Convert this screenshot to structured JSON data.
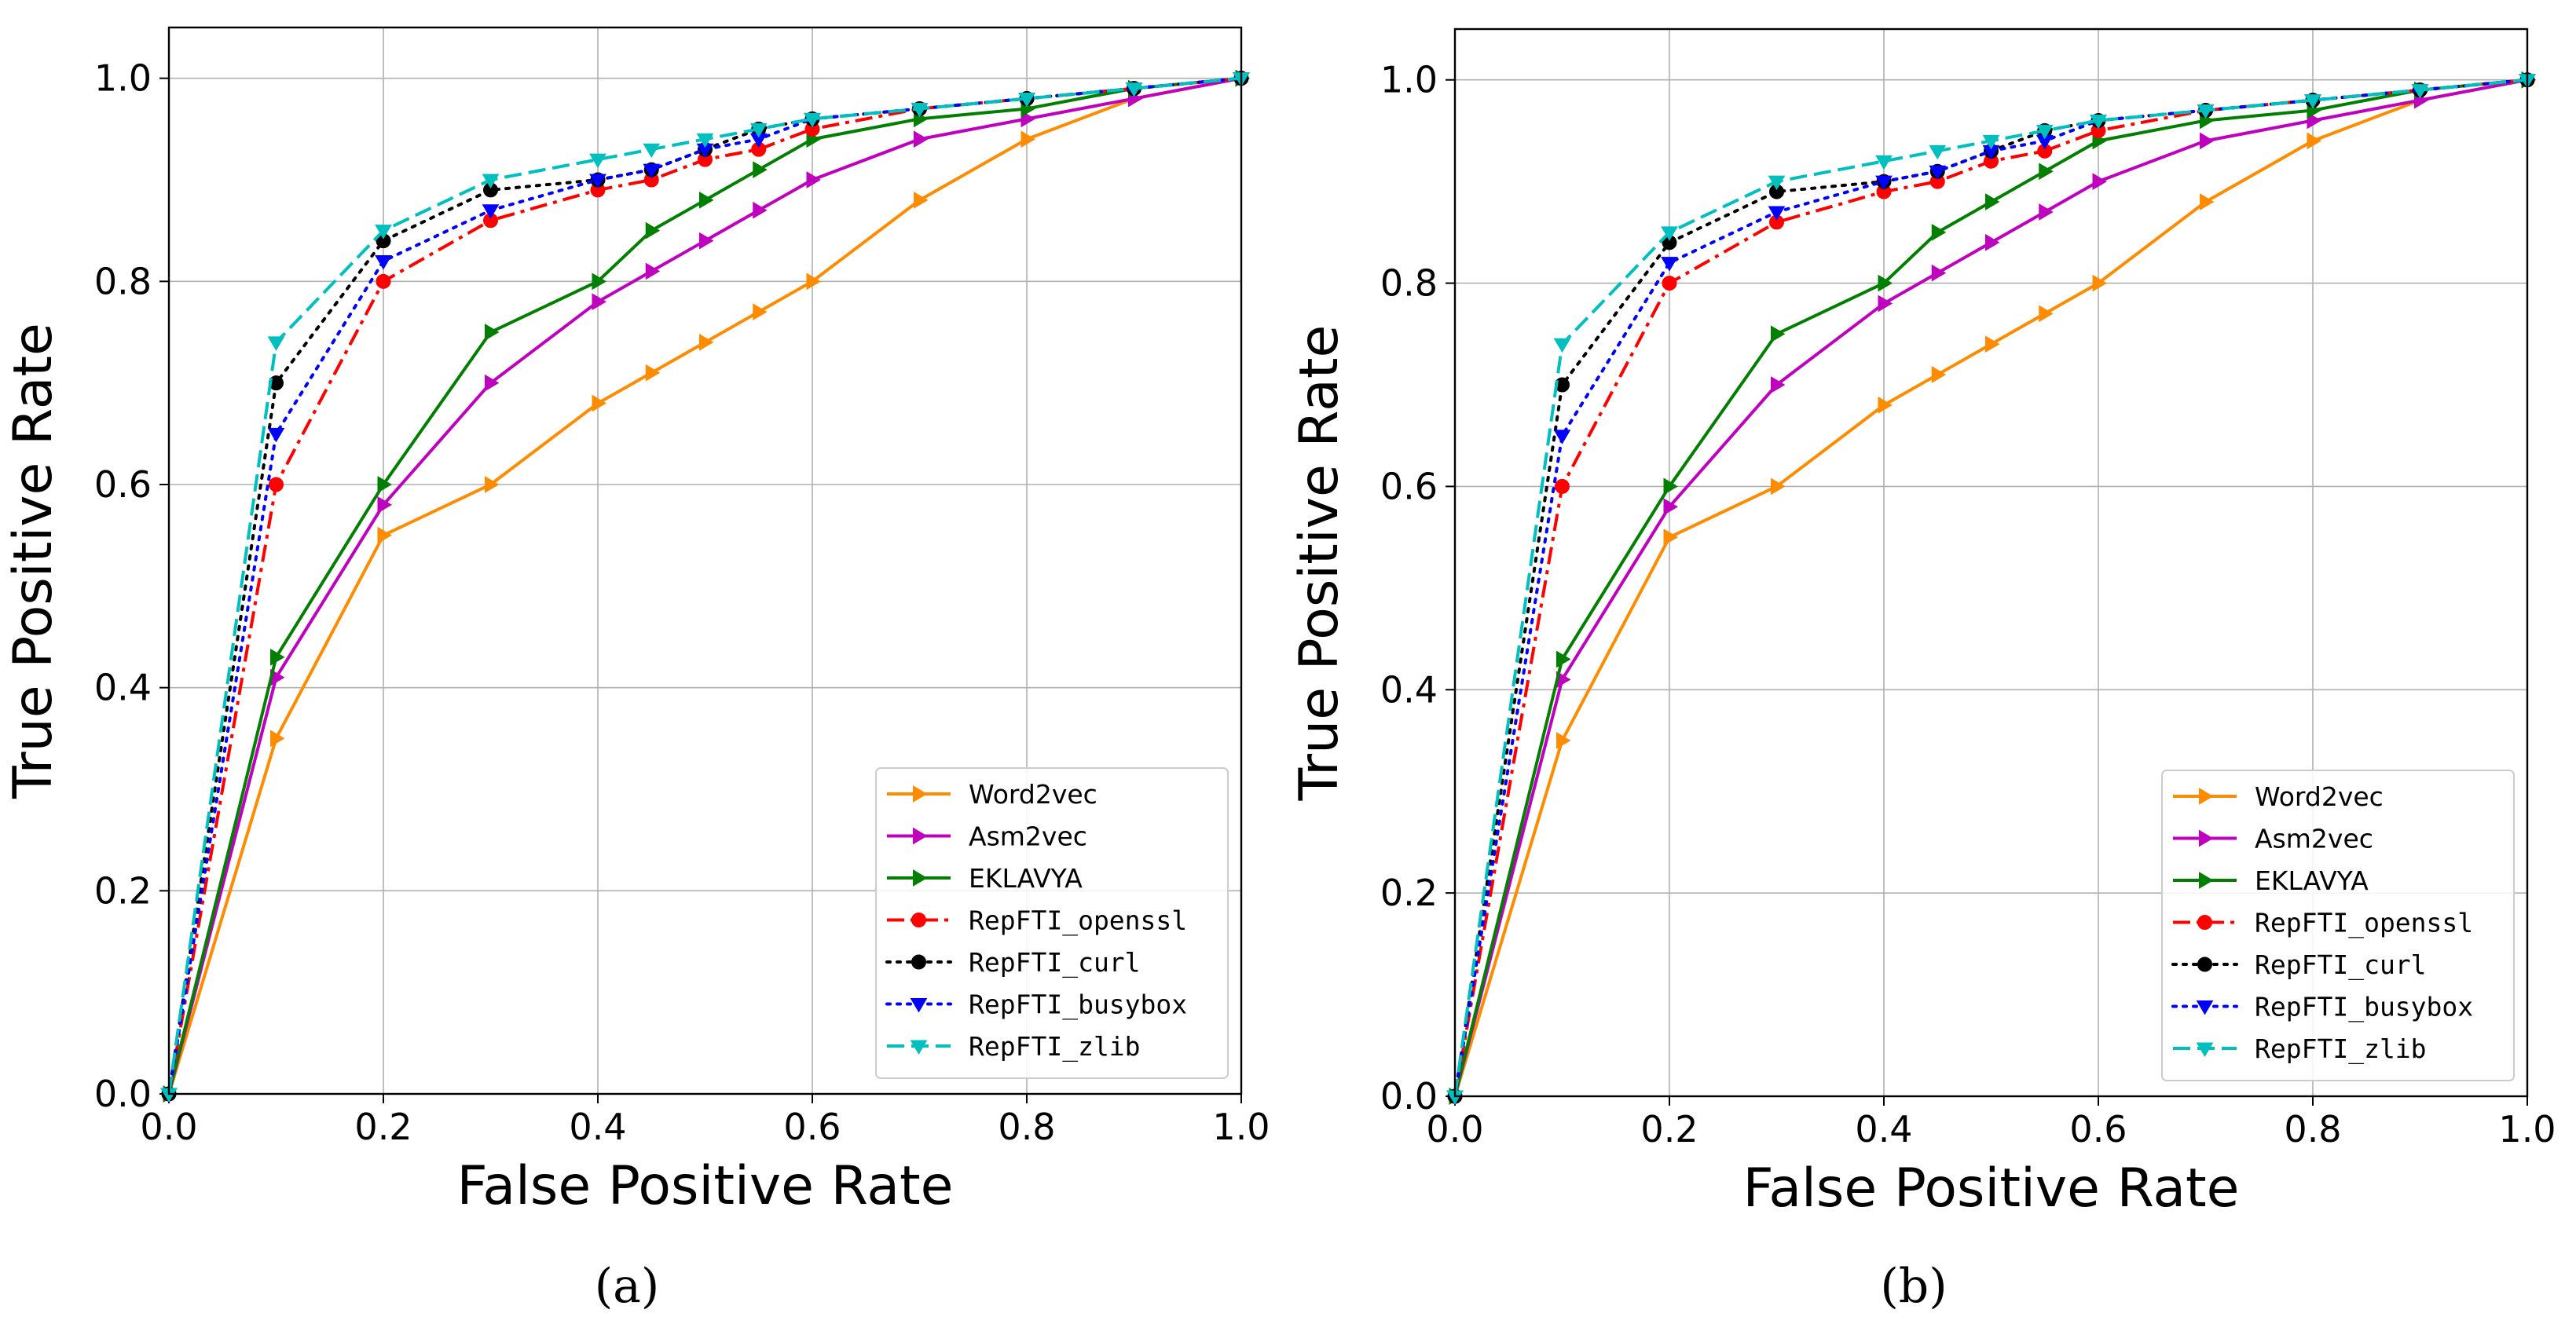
{
  "chart_data": [
    {
      "panel": "(a)",
      "type": "line",
      "xlabel": "False Positive Rate",
      "ylabel": "True Positive Rate",
      "xlim": [
        0,
        1
      ],
      "ylim": [
        0,
        1.05
      ],
      "x_ticks": [
        "0.0",
        "0.2",
        "0.4",
        "0.6",
        "0.8",
        "1.0"
      ],
      "y_ticks": [
        "0.0",
        "0.2",
        "0.4",
        "0.6",
        "0.8",
        "1.0"
      ],
      "grid": true,
      "legend_position": "lower-right",
      "series": [
        {
          "name": "Word2vec",
          "color": "#ff8c00",
          "dash": "solid",
          "marker": "triangle-right",
          "x": [
            0,
            0.1,
            0.2,
            0.3,
            0.4,
            0.45,
            0.5,
            0.55,
            0.6,
            0.7,
            0.8,
            0.9,
            1.0
          ],
          "y": [
            0,
            0.35,
            0.55,
            0.6,
            0.68,
            0.71,
            0.74,
            0.77,
            0.8,
            0.88,
            0.94,
            0.98,
            1.0
          ]
        },
        {
          "name": "Asm2vec",
          "color": "#bf00bf",
          "dash": "solid",
          "marker": "triangle-right",
          "x": [
            0,
            0.1,
            0.2,
            0.3,
            0.4,
            0.45,
            0.5,
            0.55,
            0.6,
            0.7,
            0.8,
            0.9,
            1.0
          ],
          "y": [
            0,
            0.41,
            0.58,
            0.7,
            0.78,
            0.81,
            0.84,
            0.87,
            0.9,
            0.94,
            0.96,
            0.98,
            1.0
          ]
        },
        {
          "name": "EKLAVYA",
          "color": "#007f00",
          "dash": "solid",
          "marker": "triangle-right",
          "x": [
            0,
            0.1,
            0.2,
            0.3,
            0.4,
            0.45,
            0.5,
            0.55,
            0.6,
            0.7,
            0.8,
            0.9,
            1.0
          ],
          "y": [
            0,
            0.43,
            0.6,
            0.75,
            0.8,
            0.85,
            0.88,
            0.91,
            0.94,
            0.96,
            0.97,
            0.99,
            1.0
          ]
        },
        {
          "name": "RepFTI_openssl",
          "color": "#ff0000",
          "dash": "dashdot",
          "marker": "circle",
          "x": [
            0,
            0.1,
            0.2,
            0.3,
            0.4,
            0.45,
            0.5,
            0.55,
            0.6,
            0.7,
            0.8,
            0.9,
            1.0
          ],
          "y": [
            0,
            0.6,
            0.8,
            0.86,
            0.89,
            0.9,
            0.92,
            0.93,
            0.95,
            0.97,
            0.98,
            0.99,
            1.0
          ]
        },
        {
          "name": "RepFTI_curl",
          "color": "#000000",
          "dash": "dotted",
          "marker": "circle",
          "x": [
            0,
            0.1,
            0.2,
            0.3,
            0.4,
            0.45,
            0.5,
            0.55,
            0.6,
            0.7,
            0.8,
            0.9,
            1.0
          ],
          "y": [
            0,
            0.7,
            0.84,
            0.89,
            0.9,
            0.91,
            0.93,
            0.95,
            0.96,
            0.97,
            0.98,
            0.99,
            1.0
          ]
        },
        {
          "name": "RepFTI_busybox",
          "color": "#0000ff",
          "dash": "dotted",
          "marker": "triangle-down",
          "x": [
            0,
            0.1,
            0.2,
            0.3,
            0.4,
            0.45,
            0.5,
            0.55,
            0.6,
            0.7,
            0.8,
            0.9,
            1.0
          ],
          "y": [
            0,
            0.65,
            0.82,
            0.87,
            0.9,
            0.91,
            0.93,
            0.94,
            0.96,
            0.97,
            0.98,
            0.99,
            1.0
          ]
        },
        {
          "name": "RepFTI_zlib",
          "color": "#00bfbf",
          "dash": "dashed",
          "marker": "triangle-down",
          "x": [
            0,
            0.1,
            0.2,
            0.3,
            0.4,
            0.45,
            0.5,
            0.55,
            0.6,
            0.7,
            0.8,
            0.9,
            1.0
          ],
          "y": [
            0,
            0.74,
            0.85,
            0.9,
            0.92,
            0.93,
            0.94,
            0.95,
            0.96,
            0.97,
            0.98,
            0.99,
            1.0
          ]
        }
      ]
    },
    {
      "panel": "(b)",
      "type": "line",
      "xlabel": "False Positive Rate",
      "ylabel": "True Positive Rate",
      "xlim": [
        0,
        1
      ],
      "ylim": [
        0,
        1.05
      ],
      "x_ticks": [
        "0.0",
        "0.2",
        "0.4",
        "0.6",
        "0.8",
        "1.0"
      ],
      "y_ticks": [
        "0.0",
        "0.2",
        "0.4",
        "0.6",
        "0.8",
        "1.0"
      ],
      "grid": true,
      "legend_position": "lower-right",
      "series": [
        {
          "name": "Word2vec",
          "color": "#ff8c00",
          "dash": "solid",
          "marker": "triangle-right",
          "x": [
            0,
            0.1,
            0.2,
            0.3,
            0.4,
            0.45,
            0.5,
            0.55,
            0.6,
            0.7,
            0.8,
            0.9,
            1.0
          ],
          "y": [
            0,
            0.35,
            0.55,
            0.6,
            0.68,
            0.71,
            0.74,
            0.77,
            0.8,
            0.88,
            0.94,
            0.98,
            1.0
          ]
        },
        {
          "name": "Asm2vec",
          "color": "#bf00bf",
          "dash": "solid",
          "marker": "triangle-right",
          "x": [
            0,
            0.1,
            0.2,
            0.3,
            0.4,
            0.45,
            0.5,
            0.55,
            0.6,
            0.7,
            0.8,
            0.9,
            1.0
          ],
          "y": [
            0,
            0.41,
            0.58,
            0.7,
            0.78,
            0.81,
            0.84,
            0.87,
            0.9,
            0.94,
            0.96,
            0.98,
            1.0
          ]
        },
        {
          "name": "EKLAVYA",
          "color": "#007f00",
          "dash": "solid",
          "marker": "triangle-right",
          "x": [
            0,
            0.1,
            0.2,
            0.3,
            0.4,
            0.45,
            0.5,
            0.55,
            0.6,
            0.7,
            0.8,
            0.9,
            1.0
          ],
          "y": [
            0,
            0.43,
            0.6,
            0.75,
            0.8,
            0.85,
            0.88,
            0.91,
            0.94,
            0.96,
            0.97,
            0.99,
            1.0
          ]
        },
        {
          "name": "RepFTI_openssl",
          "color": "#ff0000",
          "dash": "dashdot",
          "marker": "circle",
          "x": [
            0,
            0.1,
            0.2,
            0.3,
            0.4,
            0.45,
            0.5,
            0.55,
            0.6,
            0.7,
            0.8,
            0.9,
            1.0
          ],
          "y": [
            0,
            0.6,
            0.8,
            0.86,
            0.89,
            0.9,
            0.92,
            0.93,
            0.95,
            0.97,
            0.98,
            0.99,
            1.0
          ]
        },
        {
          "name": "RepFTI_curl",
          "color": "#000000",
          "dash": "dotted",
          "marker": "circle",
          "x": [
            0,
            0.1,
            0.2,
            0.3,
            0.4,
            0.45,
            0.5,
            0.55,
            0.6,
            0.7,
            0.8,
            0.9,
            1.0
          ],
          "y": [
            0,
            0.7,
            0.84,
            0.89,
            0.9,
            0.91,
            0.93,
            0.95,
            0.96,
            0.97,
            0.98,
            0.99,
            1.0
          ]
        },
        {
          "name": "RepFTI_busybox",
          "color": "#0000ff",
          "dash": "dotted",
          "marker": "triangle-down",
          "x": [
            0,
            0.1,
            0.2,
            0.3,
            0.4,
            0.45,
            0.5,
            0.55,
            0.6,
            0.7,
            0.8,
            0.9,
            1.0
          ],
          "y": [
            0,
            0.65,
            0.82,
            0.87,
            0.9,
            0.91,
            0.93,
            0.94,
            0.96,
            0.97,
            0.98,
            0.99,
            1.0
          ]
        },
        {
          "name": "RepFTI_zlib",
          "color": "#00bfbf",
          "dash": "dashed",
          "marker": "triangle-down",
          "x": [
            0,
            0.1,
            0.2,
            0.3,
            0.4,
            0.45,
            0.5,
            0.55,
            0.6,
            0.7,
            0.8,
            0.9,
            1.0
          ],
          "y": [
            0,
            0.74,
            0.85,
            0.9,
            0.92,
            0.93,
            0.94,
            0.95,
            0.96,
            0.97,
            0.98,
            0.99,
            1.0
          ]
        }
      ]
    }
  ]
}
